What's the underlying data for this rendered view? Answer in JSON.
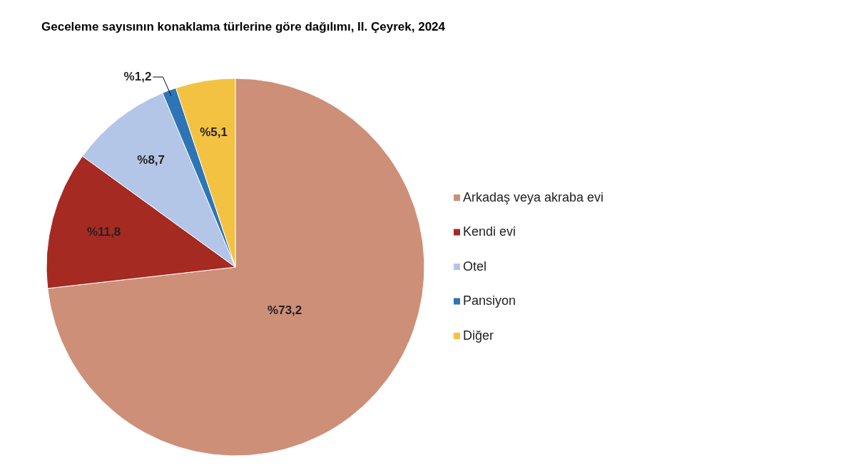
{
  "chart_data": {
    "type": "pie",
    "title": "Geceleme sayısının konaklama türlerine göre dağılımı, II. Çeyrek, 2024",
    "categories": [
      "Arkadaş veya akraba evi",
      "Kendi evi",
      "Otel",
      "Pansiyon",
      "Diğer"
    ],
    "values": [
      73.2,
      11.8,
      8.7,
      1.2,
      5.1
    ],
    "colors": [
      "#cd8f78",
      "#a52a22",
      "#b4c6e7",
      "#2e75b6",
      "#f4c242"
    ],
    "value_labels": [
      "%73,2",
      "%11,8",
      "%8,7",
      "%1,2",
      "%5,1"
    ],
    "legend": "right"
  }
}
